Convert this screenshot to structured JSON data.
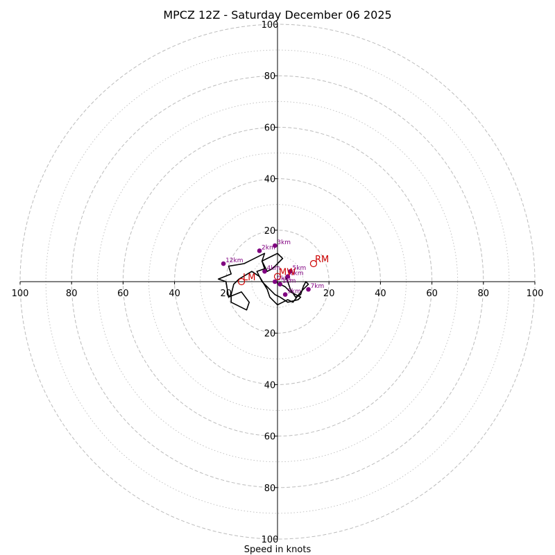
{
  "chart_data": {
    "type": "hodograph",
    "title": "MPCZ 12Z - Saturday December 06 2025",
    "xlabel": "Speed in knots",
    "radial_max": 100,
    "ring_values_major": [
      20,
      40,
      60,
      80,
      100
    ],
    "ring_values_minor": [
      10,
      30,
      50,
      70,
      90
    ],
    "x_tick_labels": [
      "100",
      "80",
      "60",
      "40",
      "20",
      "20",
      "40",
      "60",
      "80",
      "100"
    ],
    "x_tick_values": [
      -100,
      -80,
      -60,
      -40,
      -20,
      20,
      40,
      60,
      80,
      100
    ],
    "y_tick_labels": [
      "100",
      "80",
      "60",
      "40",
      "20",
      "20",
      "40",
      "60",
      "80",
      "100"
    ],
    "y_tick_values": [
      100,
      80,
      60,
      40,
      20,
      -20,
      -40,
      -60,
      -80,
      -100
    ],
    "colors": {
      "trace": "#000000",
      "height_marker": "#800080",
      "storm_motion": "#cc0000",
      "rings": "#bbbbbb"
    },
    "trace": {
      "u": [
        -1,
        3,
        5,
        9,
        8,
        4,
        1,
        -1,
        -4,
        -6,
        -8,
        -5,
        -6,
        -2,
        0,
        2,
        0,
        -2,
        -4,
        -6,
        -5,
        -11,
        -13,
        -19,
        -18,
        -23,
        -20,
        -19,
        -14,
        -11,
        -12,
        -18,
        -18,
        -17,
        -15,
        -10,
        -7,
        -4,
        -3,
        0,
        2,
        4,
        6,
        9,
        12,
        11,
        10,
        9,
        7,
        5,
        4,
        3
      ],
      "v": [
        0,
        -2,
        -4,
        -6,
        -7,
        -8,
        -6,
        -5,
        -2,
        0,
        4,
        5,
        8,
        10,
        11,
        9,
        7,
        5,
        4,
        8,
        11,
        8,
        7,
        6,
        3,
        1,
        0,
        -6,
        -4,
        -8,
        -11,
        -8,
        -5,
        -1,
        1,
        4,
        2,
        -3,
        -6,
        -9,
        -8,
        -7,
        -8,
        -4,
        -1,
        0,
        -2,
        -5,
        -6,
        -3,
        0,
        2
      ]
    },
    "height_markers": [
      {
        "label": "0km",
        "u": -1,
        "v": 0
      },
      {
        "label": "1km",
        "u": 1,
        "v": -1
      },
      {
        "label": "2km",
        "u": -7,
        "v": 12
      },
      {
        "label": "3km",
        "u": -1,
        "v": 14
      },
      {
        "label": "4km",
        "u": -5,
        "v": 4
      },
      {
        "label": "5km",
        "u": 5,
        "v": 4
      },
      {
        "label": "6km",
        "u": 4,
        "v": 2
      },
      {
        "label": "7km",
        "u": 12,
        "v": -3
      },
      {
        "label": "9km",
        "u": 3,
        "v": -5
      },
      {
        "label": "12km",
        "u": -21,
        "v": 7
      }
    ],
    "storm_motions": [
      {
        "label": "RM",
        "u": 14,
        "v": 7
      },
      {
        "label": "LM",
        "u": -14,
        "v": 0
      },
      {
        "label": "MW",
        "u": 0,
        "v": 2
      }
    ]
  }
}
